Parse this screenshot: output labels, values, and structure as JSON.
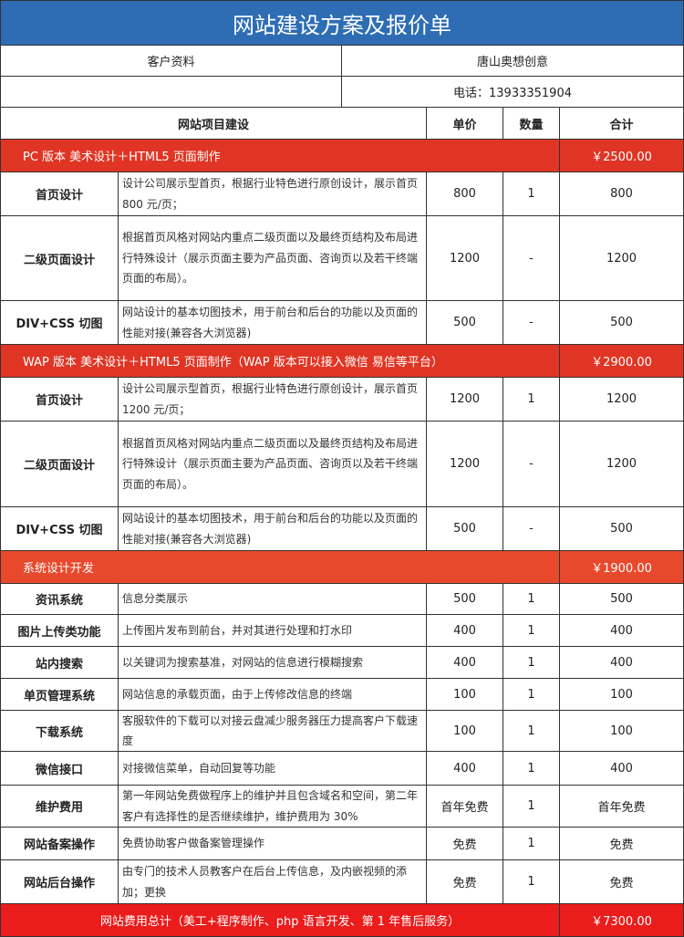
{
  "title": "网站建设方案及报价单",
  "client": {
    "label": "客户资料",
    "company": "唐山奥想创意",
    "phone": "电话：13933351904"
  },
  "header": {
    "item": "网站项目建设",
    "price": "单价",
    "qty": "数量",
    "total": "合计"
  },
  "colors": {
    "title_bg": "#2e6db4",
    "section_bg": "#e03524",
    "footer_bg": "#ea1c1c"
  },
  "sections": [
    {
      "title": "PC 版本 美术设计＋HTML5 页面制作",
      "total": "￥2500.00",
      "rows": [
        {
          "name": "首页设计",
          "desc": "设计公司展示型首页，根据行业特色进行原创设计，展示首页 800 元/页；",
          "price": "800",
          "qty": "1",
          "total": "800"
        },
        {
          "name": "二级页面设计",
          "desc": "根据首页风格对网站内重点二级页面以及最终页结构及布局进行特殊设计（展示页面主要为产品页面、咨询页以及若干终端页面的布局）。",
          "price": "1200",
          "qty": "-",
          "total": "1200"
        },
        {
          "name": "DIV+CSS 切图",
          "desc": "网站设计的基本切图技术，用于前台和后台的功能以及页面的性能对接(兼容各大浏览器)",
          "price": "500",
          "qty": "-",
          "total": "500"
        }
      ]
    },
    {
      "title": "WAP 版本 美术设计＋HTML5 页面制作（WAP 版本可以接入微信 易信等平台）",
      "total": "￥2900.00",
      "rows": [
        {
          "name": "首页设计",
          "desc": "设计公司展示型首页，根据行业特色进行原创设计，展示首页 1200 元/页；",
          "price": "1200",
          "qty": "1",
          "total": "1200"
        },
        {
          "name": "二级页面设计",
          "desc": "根据首页风格对网站内重点二级页面以及最终页结构及布局进行特殊设计（展示页面主要为产品页面、咨询页以及若干终端页面的布局）。",
          "price": "1200",
          "qty": "-",
          "total": "1200"
        },
        {
          "name": "DIV+CSS 切图",
          "desc": "网站设计的基本切图技术，用于前台和后台的功能以及页面的性能对接(兼容各大浏览器)",
          "price": "500",
          "qty": "-",
          "total": "500"
        }
      ]
    },
    {
      "title": "系统设计开发",
      "total": "￥1900.00",
      "rows": [
        {
          "name": "资讯系统",
          "desc": "信息分类展示",
          "price": "500",
          "qty": "1",
          "total": "500"
        },
        {
          "name": "图片上传类功能",
          "desc": "上传图片发布到前台，并对其进行处理和打水印",
          "price": "400",
          "qty": "1",
          "total": "400"
        },
        {
          "name": "站内搜索",
          "desc": "以关键词为搜索基准，对网站的信息进行模糊搜索",
          "price": "400",
          "qty": "1",
          "total": "400"
        },
        {
          "name": "单页管理系统",
          "desc": "网站信息的承载页面，由于上传修改信息的终端",
          "price": "100",
          "qty": "1",
          "total": "100"
        },
        {
          "name": "下载系统",
          "desc": "客服软件的下载可以对接云盘减少服务器压力提高客户下载速度",
          "price": "100",
          "qty": "1",
          "total": "100"
        },
        {
          "name": "微信接口",
          "desc": "对接微信菜单，自动回复等功能",
          "price": "400",
          "qty": "1",
          "total": "400"
        },
        {
          "name": "维护费用",
          "desc": "第一年网站免费做程序上的维护并且包含域名和空间，第二年客户有选择性的是否继续维护，维护费用为 30%",
          "price": "首年免费",
          "qty": "1",
          "total": "首年免费"
        },
        {
          "name": "网站备案操作",
          "desc": "免费协助客户做备案管理操作",
          "price": "免费",
          "qty": "1",
          "total": "免费"
        },
        {
          "name": "网站后台操作",
          "desc": "由专门的技术人员教客户在后台上传信息，及内嵌视频的添加；更换",
          "price": "免费",
          "qty": "1",
          "total": "免费"
        }
      ]
    }
  ],
  "footer": {
    "label": "网站费用总计（美工+程序制作、php 语言开发、第 1 年售后服务）",
    "total": "￥7300.00"
  }
}
